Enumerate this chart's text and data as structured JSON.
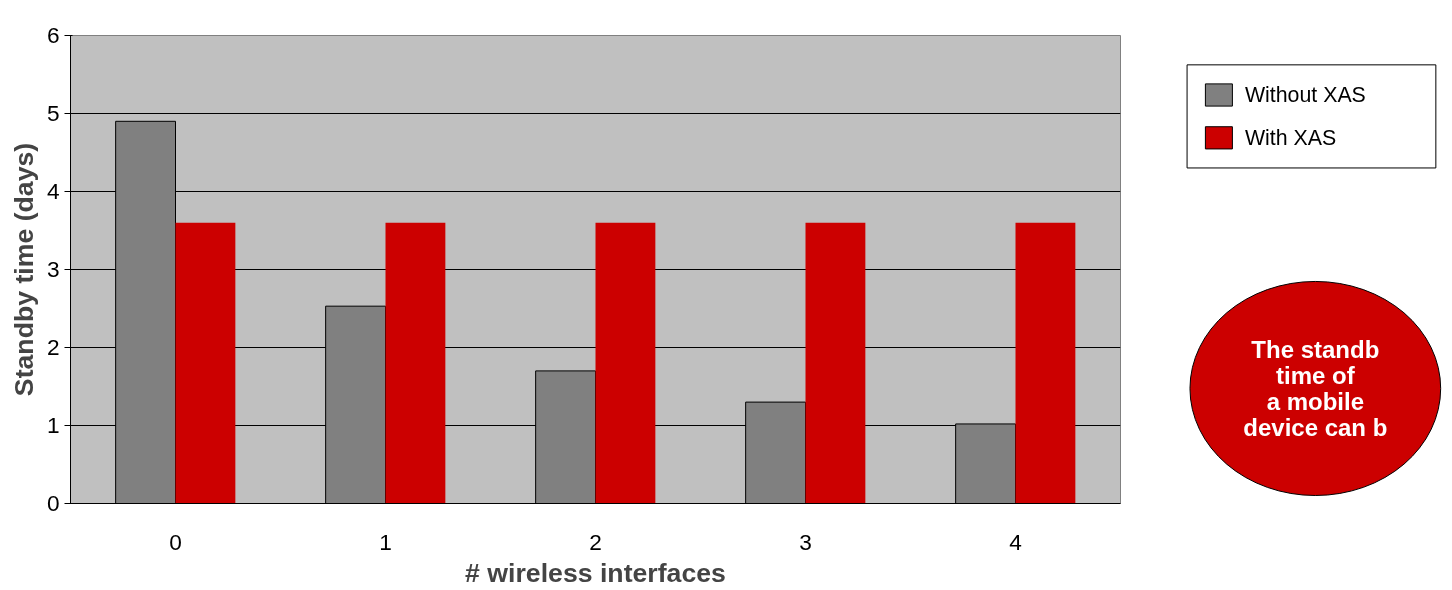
{
  "chart_data": {
    "type": "bar",
    "xlabel": "# wireless interfaces",
    "ylabel": "Standby time (days)",
    "categories": [
      "0",
      "1",
      "2",
      "3",
      "4"
    ],
    "series": [
      {
        "name": "Without XAS",
        "color": "#808080",
        "values": [
          4.9,
          2.53,
          1.7,
          1.3,
          1.02
        ]
      },
      {
        "name": "With XAS",
        "color": "#cc0000",
        "values": [
          3.6,
          3.6,
          3.6,
          3.6,
          3.6
        ]
      }
    ],
    "ylim": [
      0,
      6
    ],
    "yticks": [
      0,
      1,
      2,
      3,
      4,
      5,
      6
    ],
    "grid": "y",
    "legend": "right",
    "annotations": [
      "The standb\ntime of\na mobile\ndevice can b"
    ]
  }
}
